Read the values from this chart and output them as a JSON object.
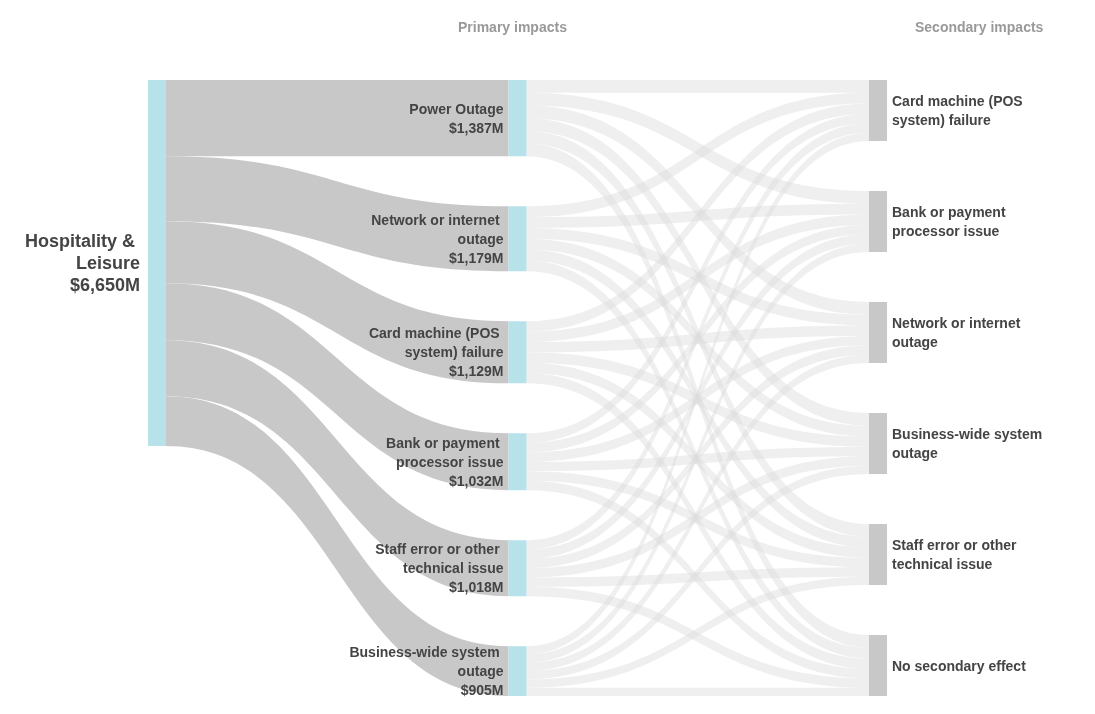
{
  "chart_data": {
    "type": "other",
    "title": "Hospitality & Leisure",
    "subtitle": "$6,650M",
    "annotations": [
      "Primary impacts",
      "Secondary impacts"
    ],
    "categories": [
      "Power Outage",
      "Network or internet outage",
      "Card machine (POS system) failure",
      "Bank or payment processor issue",
      "Staff error or other technical issue",
      "Business-wide system outage"
    ],
    "values": [
      1387,
      1179,
      1129,
      1032,
      1018,
      905
    ],
    "value_labels": [
      "$1,387M",
      "$1,179M",
      "$1,129M",
      "$1,032M",
      "$1,018M",
      "$905M"
    ],
    "color": "#b8e2ea",
    "y_categories": [
      "Card machine (POS system) failure",
      "Bank or payment processor issue",
      "Network or internet outage",
      "Business-wide system outage",
      "Staff error or other technical issue",
      "No secondary effect"
    ],
    "colors": [
      "#c8c8c8",
      "#c8c8c8",
      "#c8c8c8",
      "#c8c8c8",
      "#c8c8c8",
      "#c8c8c8"
    ]
  }
}
